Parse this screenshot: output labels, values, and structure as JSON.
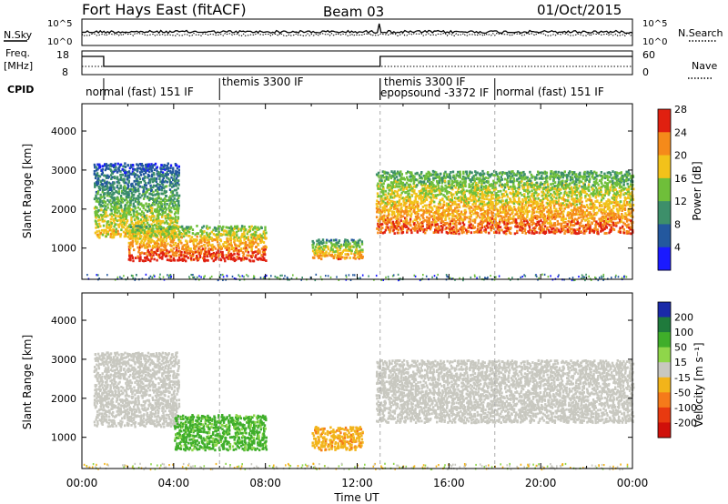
{
  "header": {
    "station": "Fort Hays East (fitACF)",
    "beam": "Beam 03",
    "date": "01/Oct/2015"
  },
  "labels": {
    "nsky": "N.Sky",
    "nsearch": "N.Search",
    "freq_line1": "Freq.",
    "freq_line2": "[MHz]",
    "nave": "Nave",
    "cpid": "CPID",
    "slant_range": "Slant Range [km]",
    "time_ut": "Time UT",
    "power_axis": "Power [dB]",
    "velocity_axis": "Velocity [m s⁻¹]"
  },
  "noise_axis": {
    "left_top": "10^5",
    "left_bottom": "10^0",
    "right_top": "10^5",
    "right_bottom": "10^0"
  },
  "freq_axis": {
    "left_ticks": [
      "18",
      "8"
    ],
    "right_ticks": [
      "60",
      "0"
    ]
  },
  "cpid_segments": [
    {
      "label": "normal (fast) 151 IF",
      "start_hr": 0.95
    },
    {
      "label": "themis 3300 IF",
      "start_hr": 6.0
    },
    {
      "label": "themis 3300 IF",
      "start_hr": 13.0
    },
    {
      "label": "epopsound -3372 IF",
      "start_hr": 13.0
    },
    {
      "label": "normal (fast) 151 IF",
      "start_hr": 18.0
    }
  ],
  "chart_data": [
    {
      "type": "heatmap",
      "title": "Power",
      "ylabel": "Slant Range [km]",
      "xlabel": "Time UT",
      "xlim": [
        0,
        24
      ],
      "ylim": [
        200,
        4700
      ],
      "y_ticks": [
        "1000",
        "2000",
        "3000",
        "4000"
      ],
      "x_ticks": [
        "00:00",
        "04:00",
        "08:00",
        "12:00",
        "16:00",
        "20:00",
        "00:00"
      ],
      "colorbar": {
        "label": "Power [dB]",
        "ticks": [
          "4",
          "8",
          "12",
          "16",
          "20",
          "24",
          "28"
        ],
        "colors": [
          "#1a1aff",
          "#23589e",
          "#3d8f6a",
          "#6fbf3a",
          "#f2c21a",
          "#f58a1a",
          "#e02010"
        ]
      },
      "regions": [
        {
          "name": "early-band",
          "t": [
            0.5,
            4.2
          ],
          "range": [
            1300,
            3200
          ],
          "power": 14
        },
        {
          "name": "morning-patch",
          "t": [
            2.0,
            8.0
          ],
          "range": [
            700,
            1600
          ],
          "power": 22
        },
        {
          "name": "late-morning-patch",
          "t": [
            10.0,
            12.2
          ],
          "range": [
            750,
            1250
          ],
          "power": 18
        },
        {
          "name": "afternoon-band",
          "t": [
            12.8,
            24.0
          ],
          "range": [
            1400,
            3000
          ],
          "power": 20
        }
      ]
    },
    {
      "type": "heatmap",
      "title": "Velocity",
      "ylabel": "Slant Range [km]",
      "xlabel": "Time UT",
      "xlim": [
        0,
        24
      ],
      "ylim": [
        200,
        4700
      ],
      "y_ticks": [
        "1000",
        "2000",
        "3000",
        "4000"
      ],
      "x_ticks": [
        "00:00",
        "04:00",
        "08:00",
        "12:00",
        "16:00",
        "20:00",
        "00:00"
      ],
      "colorbar": {
        "label": "Velocity [m s⁻¹]",
        "ticks": [
          "200",
          "100",
          "50",
          "15",
          "-15",
          "-50",
          "-100",
          "-200"
        ],
        "colors": [
          "#1a2aa8",
          "#1f7a3c",
          "#3fae2a",
          "#8fd64a",
          "#c8c8c0",
          "#f2b41a",
          "#f57a1a",
          "#e83a10",
          "#d0100a"
        ]
      },
      "regions": [
        {
          "name": "early-band",
          "t": [
            0.5,
            4.2
          ],
          "range": [
            1300,
            3200
          ],
          "velocity": 0
        },
        {
          "name": "morning-patch",
          "t": [
            4.0,
            8.0
          ],
          "range": [
            700,
            1600
          ],
          "velocity": 60
        },
        {
          "name": "late-morning-patch",
          "t": [
            10.0,
            12.2
          ],
          "range": [
            700,
            1300
          ],
          "velocity": -40
        },
        {
          "name": "afternoon-band",
          "t": [
            12.8,
            24.0
          ],
          "range": [
            1400,
            3000
          ],
          "velocity": 0
        }
      ]
    }
  ]
}
